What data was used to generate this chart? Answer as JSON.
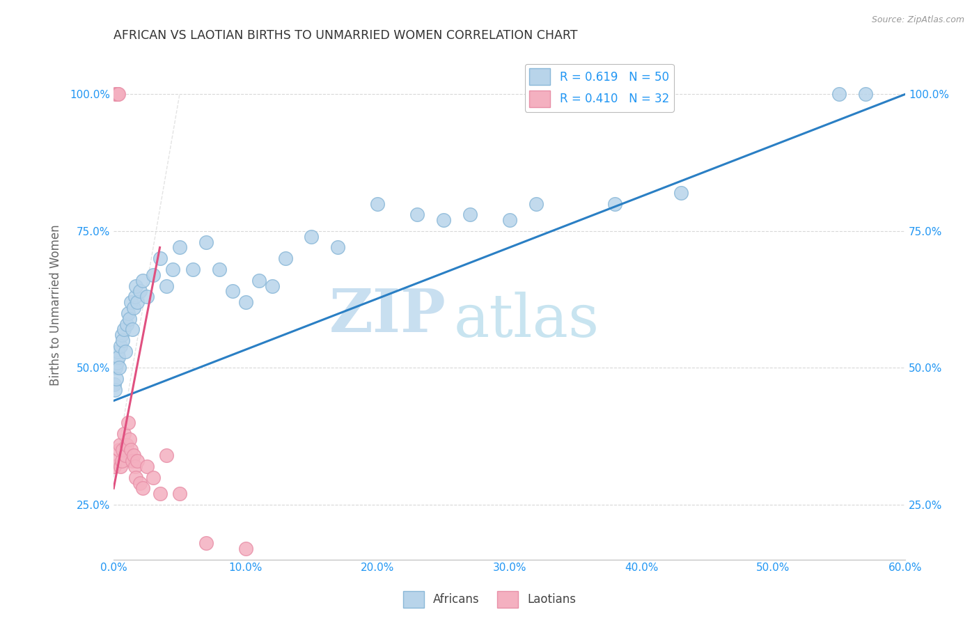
{
  "title": "AFRICAN VS LAOTIAN BIRTHS TO UNMARRIED WOMEN CORRELATION CHART",
  "source": "Source: ZipAtlas.com",
  "ylabel": "Births to Unmarried Women",
  "xlim": [
    0.0,
    60.0
  ],
  "ylim": [
    15.0,
    108.0
  ],
  "xtick_vals": [
    0,
    10,
    20,
    30,
    40,
    50,
    60
  ],
  "xtick_labels": [
    "0.0%",
    "10.0%",
    "20.0%",
    "30.0%",
    "40.0%",
    "50.0%",
    "60.0%"
  ],
  "ytick_vals": [
    25,
    50,
    75,
    100
  ],
  "ytick_labels": [
    "25.0%",
    "50.0%",
    "75.0%",
    "100.0%"
  ],
  "watermark_zip": "ZIP",
  "watermark_atlas": "atlas",
  "legend_r1": "R = 0.619   N = 50",
  "legend_r2": "R = 0.410   N = 32",
  "blue_fill": "#b8d4ea",
  "blue_edge": "#8ab8d8",
  "pink_fill": "#f4b0c0",
  "pink_edge": "#e890a8",
  "blue_line": "#2a7fc4",
  "pink_line": "#e05080",
  "gray_dashed_line": "#cccccc",
  "grid_color": "#d8d8d8",
  "axis_color": "#2196f3",
  "title_color": "#333333",
  "ylabel_color": "#666666",
  "source_color": "#999999",
  "africans_x": [
    0.05,
    0.1,
    0.15,
    0.2,
    0.25,
    0.3,
    0.35,
    0.4,
    0.5,
    0.6,
    0.7,
    0.8,
    0.9,
    1.0,
    1.1,
    1.2,
    1.3,
    1.4,
    1.5,
    1.6,
    1.7,
    1.8,
    2.0,
    2.2,
    2.5,
    3.0,
    3.5,
    4.0,
    4.5,
    5.0,
    6.0,
    7.0,
    8.0,
    9.0,
    11.0,
    13.0,
    15.0,
    17.0,
    20.0,
    23.0,
    27.0,
    32.0,
    38.0,
    43.0,
    55.0,
    57.0,
    10.0,
    12.0,
    25.0,
    30.0
  ],
  "africans_y": [
    47,
    46,
    50,
    48,
    51,
    53,
    52,
    50,
    54,
    56,
    55,
    57,
    53,
    58,
    60,
    59,
    62,
    57,
    61,
    63,
    65,
    62,
    64,
    66,
    63,
    67,
    70,
    65,
    68,
    72,
    68,
    73,
    68,
    64,
    66,
    70,
    74,
    72,
    80,
    78,
    78,
    80,
    80,
    82,
    100,
    100,
    62,
    65,
    77,
    77
  ],
  "laotians_x": [
    0.05,
    0.1,
    0.15,
    0.2,
    0.25,
    0.3,
    0.35,
    0.4,
    0.45,
    0.5,
    0.6,
    0.7,
    0.8,
    0.9,
    1.0,
    1.1,
    1.2,
    1.3,
    1.4,
    1.5,
    1.6,
    1.7,
    1.8,
    2.0,
    2.2,
    2.5,
    3.0,
    3.5,
    4.0,
    5.0,
    7.0,
    10.0
  ],
  "laotians_y": [
    32,
    33,
    100,
    100,
    100,
    100,
    100,
    35,
    36,
    32,
    33,
    35,
    38,
    34,
    36,
    40,
    37,
    35,
    33,
    34,
    32,
    30,
    33,
    29,
    28,
    32,
    30,
    27,
    34,
    27,
    18,
    17
  ],
  "blue_line_x0": 0.0,
  "blue_line_y0": 44.0,
  "blue_line_x1": 60.0,
  "blue_line_y1": 100.0,
  "pink_line_x0": 0.0,
  "pink_line_y0": 28.0,
  "pink_line_x1": 3.5,
  "pink_line_y1": 72.0
}
